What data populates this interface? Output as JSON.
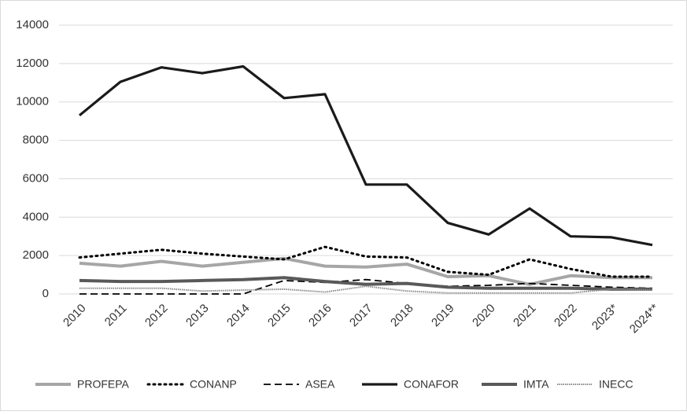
{
  "chart_data": {
    "type": "line",
    "categories": [
      "2010",
      "2011",
      "2012",
      "2013",
      "2014",
      "2015",
      "2016",
      "2017",
      "2018",
      "2019",
      "2020",
      "2021",
      "2022",
      "2023*",
      "2024**"
    ],
    "series": [
      {
        "name": "PROFEPA",
        "color": "#a6a6a6",
        "values": [
          1600,
          1450,
          1700,
          1450,
          1650,
          1850,
          1450,
          1400,
          1550,
          900,
          950,
          500,
          950,
          850,
          850
        ]
      },
      {
        "name": "CONANP",
        "color": "#000000",
        "values": [
          1900,
          2100,
          2300,
          2100,
          1950,
          1800,
          2450,
          1950,
          1900,
          1150,
          1000,
          1800,
          1300,
          900,
          900
        ]
      },
      {
        "name": "ASEA",
        "color": "#000000",
        "values": [
          0,
          0,
          0,
          0,
          0,
          700,
          600,
          750,
          550,
          400,
          450,
          550,
          450,
          350,
          300
        ]
      },
      {
        "name": "CONAFOR",
        "color": "#1a1a1a",
        "values": [
          9300,
          11050,
          11800,
          11500,
          11850,
          10200,
          10400,
          5700,
          5700,
          3700,
          3100,
          4450,
          3000,
          2950,
          2550
        ]
      },
      {
        "name": "IMTA",
        "color": "#595959",
        "values": [
          700,
          650,
          650,
          700,
          750,
          850,
          650,
          500,
          550,
          350,
          300,
          300,
          300,
          250,
          250
        ]
      },
      {
        "name": "INECC",
        "color": "#8c8c8c",
        "values": [
          300,
          300,
          300,
          150,
          200,
          250,
          100,
          400,
          150,
          50,
          50,
          50,
          50,
          250,
          200
        ]
      }
    ],
    "ylim": [
      0,
      14000
    ],
    "yticks": [
      0,
      2000,
      4000,
      6000,
      8000,
      10000,
      12000,
      14000
    ],
    "grid": true,
    "legend": "bottom"
  }
}
